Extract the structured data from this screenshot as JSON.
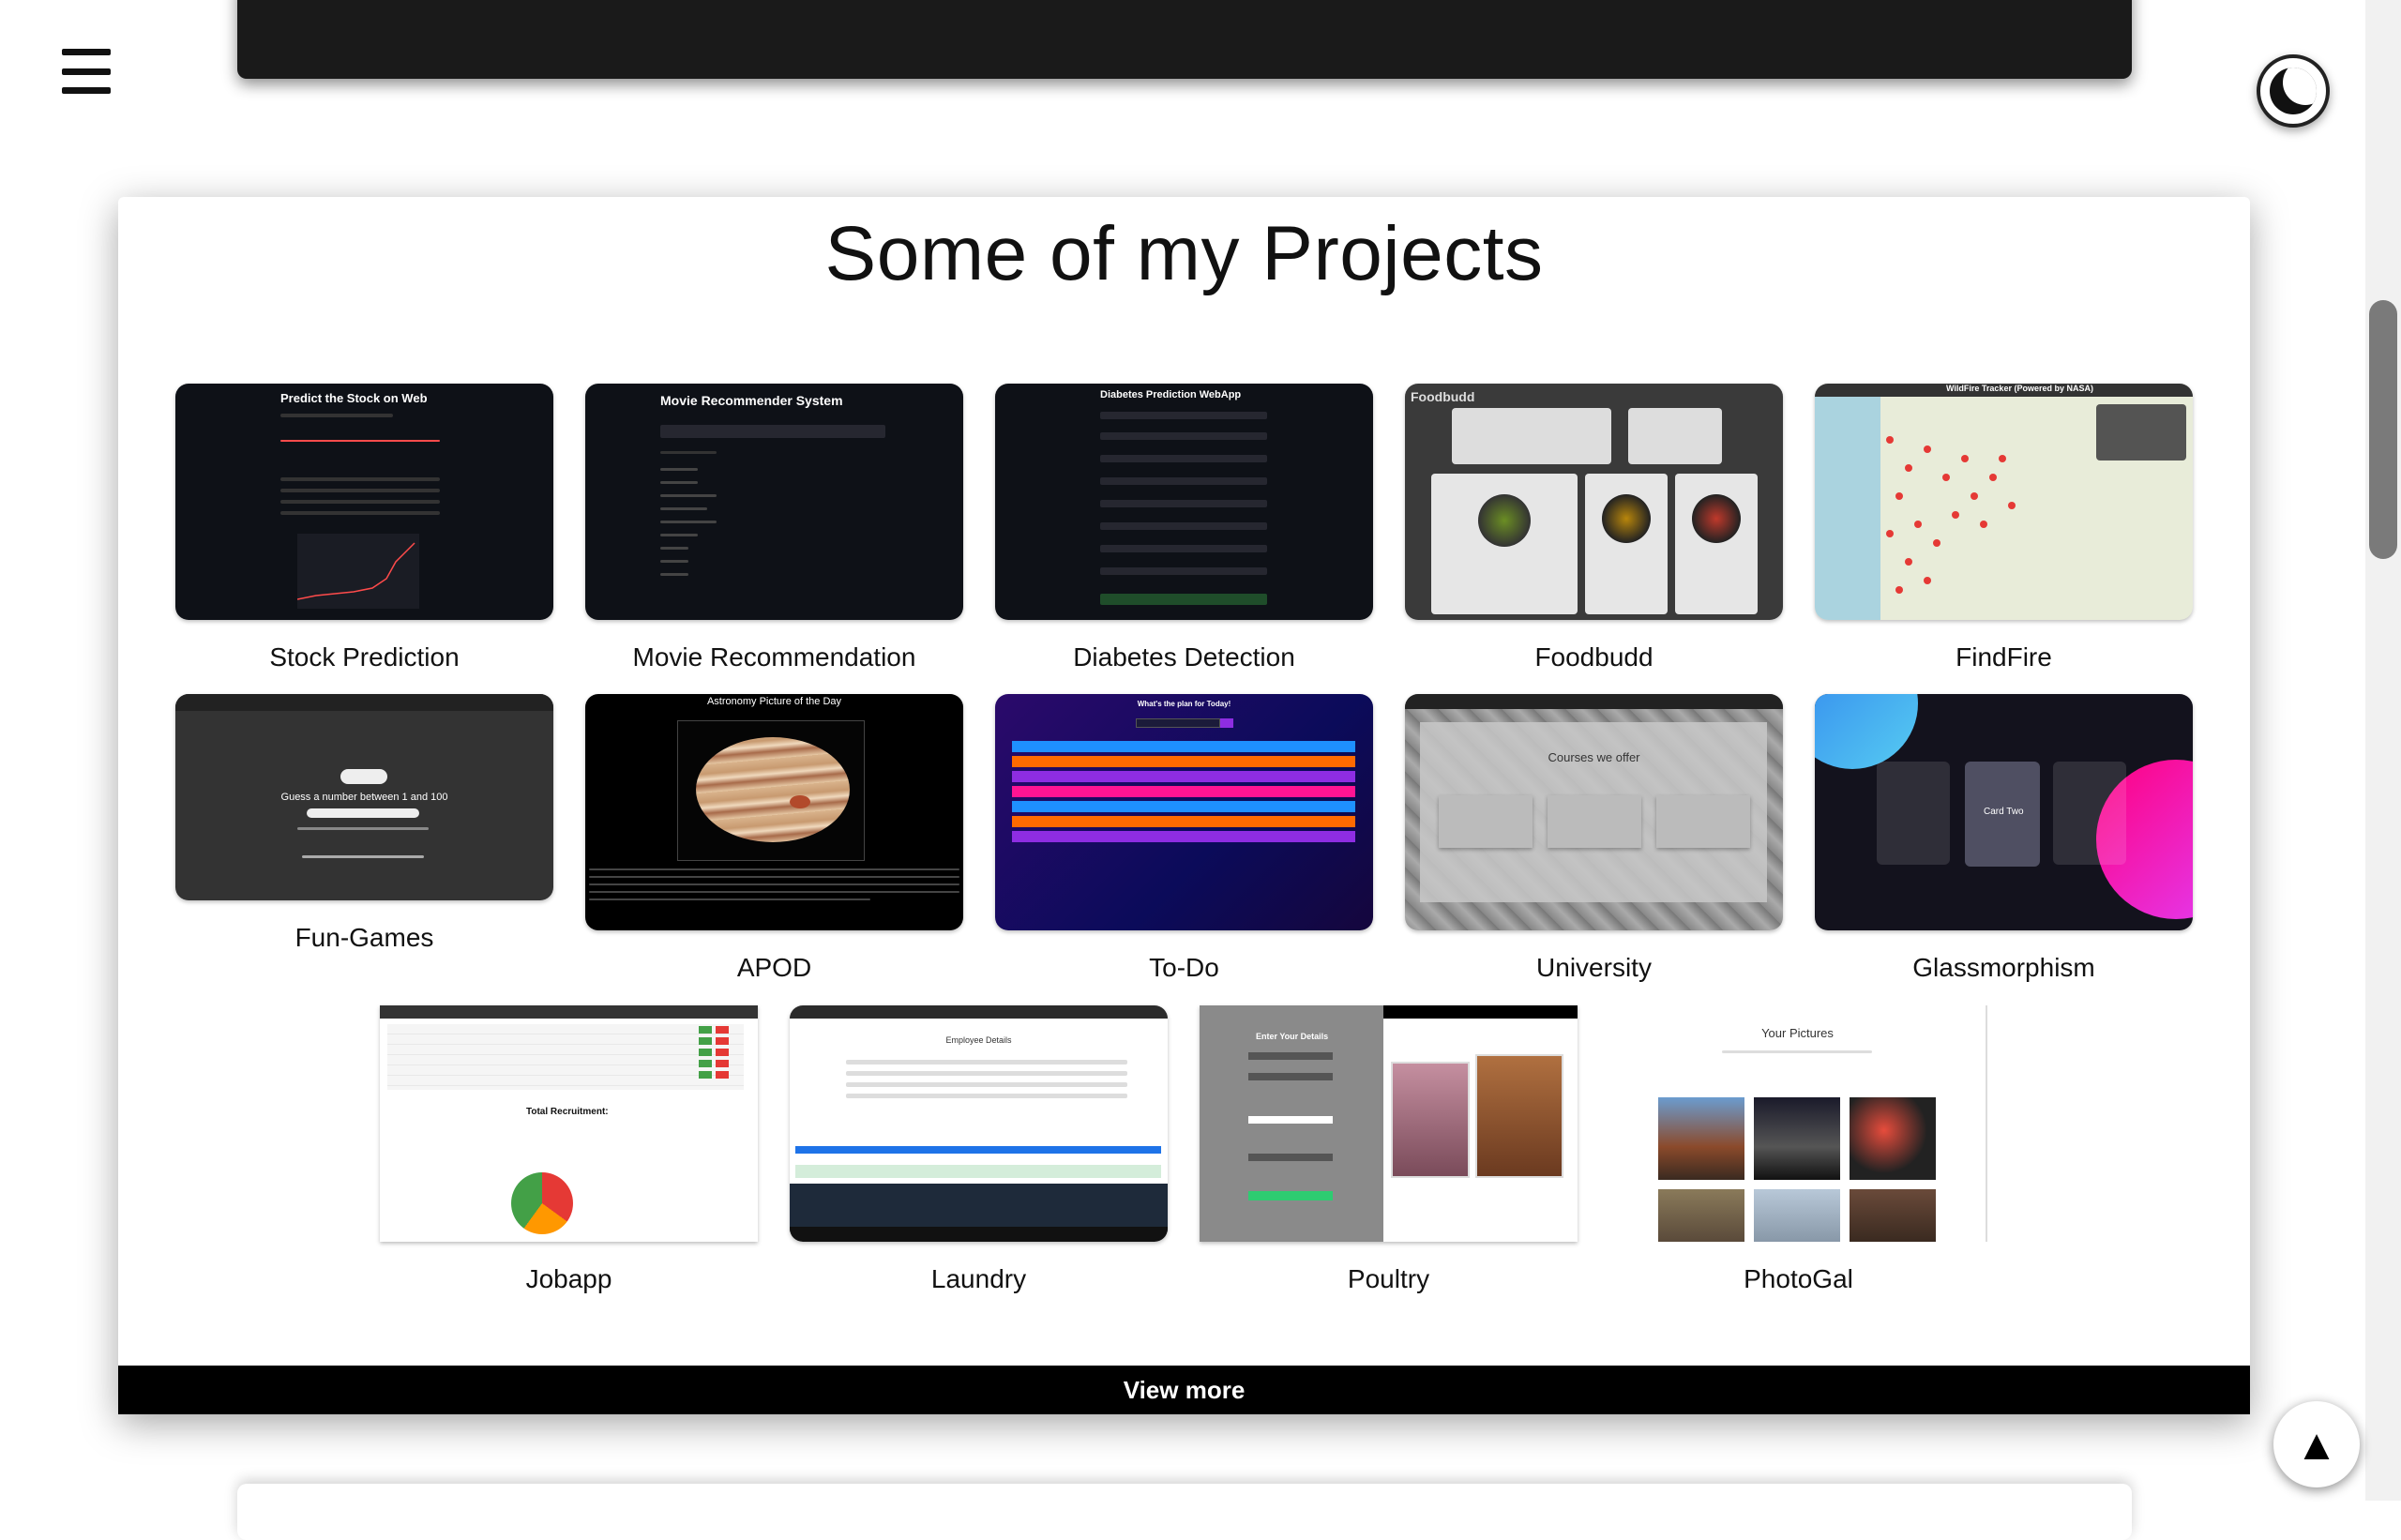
{
  "header": {
    "menu_icon": "hamburger-icon",
    "theme_icon": "moon-icon"
  },
  "projects": {
    "title": "Some of my Projects",
    "view_more": "View more",
    "items": [
      {
        "label": "Stock Prediction",
        "thumb_title": "Predict the Stock on Web"
      },
      {
        "label": "Movie Recommendation",
        "thumb_title": "Movie Recommender System"
      },
      {
        "label": "Diabetes Detection",
        "thumb_title": "Diabetes Prediction WebApp"
      },
      {
        "label": "Foodbudd",
        "thumb_title": "Foodbudd"
      },
      {
        "label": "FindFire",
        "thumb_title": "WildFire Tracker (Powered by NASA)"
      },
      {
        "label": "Fun-Games",
        "thumb_title": "Guess a number between 1 and 100"
      },
      {
        "label": "APOD",
        "thumb_title": "Astronomy Picture of the Day"
      },
      {
        "label": "To-Do",
        "thumb_title": "What's the plan for Today!"
      },
      {
        "label": "University",
        "thumb_title": "Courses we offer"
      },
      {
        "label": "Glassmorphism",
        "thumb_title": "Card Two"
      },
      {
        "label": "Jobapp",
        "thumb_title": "Total Recruitment:"
      },
      {
        "label": "Laundry",
        "thumb_title": "Employee Details"
      },
      {
        "label": "Poultry",
        "thumb_title": "Enter Your Details"
      },
      {
        "label": "PhotoGal",
        "thumb_title": "Your Pictures"
      }
    ]
  },
  "scroll_top_icon": "arrow-up-icon",
  "colors": {
    "card_bg": "#ffffff",
    "view_more_bg": "#000000",
    "text": "#111111"
  }
}
